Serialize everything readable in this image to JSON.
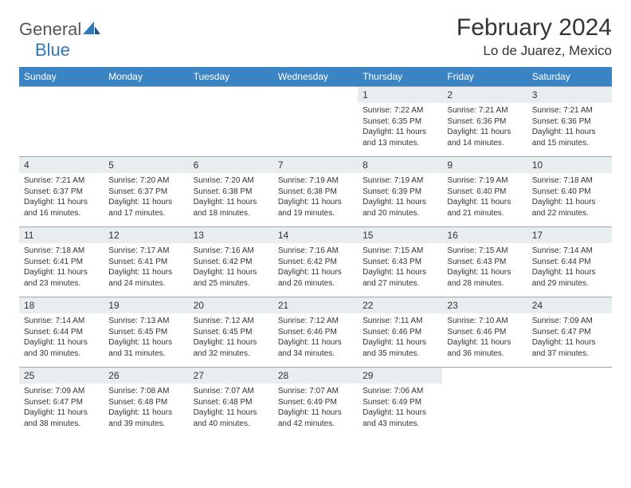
{
  "logo": {
    "text1": "General",
    "text2": "Blue"
  },
  "title": "February 2024",
  "location": "Lo de Juarez, Mexico",
  "columns": [
    "Sunday",
    "Monday",
    "Tuesday",
    "Wednesday",
    "Thursday",
    "Friday",
    "Saturday"
  ],
  "colors": {
    "header_bg": "#3b84c4",
    "header_text": "#ffffff",
    "day_bar_bg": "#e8edef",
    "border": "#9aa7b3",
    "text": "#333333",
    "logo_blue": "#2f77bb",
    "logo_gray": "#555555"
  },
  "weeks": [
    [
      null,
      null,
      null,
      null,
      {
        "n": "1",
        "sr": "7:22 AM",
        "ss": "6:35 PM",
        "dl": "11 hours and 13 minutes."
      },
      {
        "n": "2",
        "sr": "7:21 AM",
        "ss": "6:36 PM",
        "dl": "11 hours and 14 minutes."
      },
      {
        "n": "3",
        "sr": "7:21 AM",
        "ss": "6:36 PM",
        "dl": "11 hours and 15 minutes."
      }
    ],
    [
      {
        "n": "4",
        "sr": "7:21 AM",
        "ss": "6:37 PM",
        "dl": "11 hours and 16 minutes."
      },
      {
        "n": "5",
        "sr": "7:20 AM",
        "ss": "6:37 PM",
        "dl": "11 hours and 17 minutes."
      },
      {
        "n": "6",
        "sr": "7:20 AM",
        "ss": "6:38 PM",
        "dl": "11 hours and 18 minutes."
      },
      {
        "n": "7",
        "sr": "7:19 AM",
        "ss": "6:38 PM",
        "dl": "11 hours and 19 minutes."
      },
      {
        "n": "8",
        "sr": "7:19 AM",
        "ss": "6:39 PM",
        "dl": "11 hours and 20 minutes."
      },
      {
        "n": "9",
        "sr": "7:19 AM",
        "ss": "6:40 PM",
        "dl": "11 hours and 21 minutes."
      },
      {
        "n": "10",
        "sr": "7:18 AM",
        "ss": "6:40 PM",
        "dl": "11 hours and 22 minutes."
      }
    ],
    [
      {
        "n": "11",
        "sr": "7:18 AM",
        "ss": "6:41 PM",
        "dl": "11 hours and 23 minutes."
      },
      {
        "n": "12",
        "sr": "7:17 AM",
        "ss": "6:41 PM",
        "dl": "11 hours and 24 minutes."
      },
      {
        "n": "13",
        "sr": "7:16 AM",
        "ss": "6:42 PM",
        "dl": "11 hours and 25 minutes."
      },
      {
        "n": "14",
        "sr": "7:16 AM",
        "ss": "6:42 PM",
        "dl": "11 hours and 26 minutes."
      },
      {
        "n": "15",
        "sr": "7:15 AM",
        "ss": "6:43 PM",
        "dl": "11 hours and 27 minutes."
      },
      {
        "n": "16",
        "sr": "7:15 AM",
        "ss": "6:43 PM",
        "dl": "11 hours and 28 minutes."
      },
      {
        "n": "17",
        "sr": "7:14 AM",
        "ss": "6:44 PM",
        "dl": "11 hours and 29 minutes."
      }
    ],
    [
      {
        "n": "18",
        "sr": "7:14 AM",
        "ss": "6:44 PM",
        "dl": "11 hours and 30 minutes."
      },
      {
        "n": "19",
        "sr": "7:13 AM",
        "ss": "6:45 PM",
        "dl": "11 hours and 31 minutes."
      },
      {
        "n": "20",
        "sr": "7:12 AM",
        "ss": "6:45 PM",
        "dl": "11 hours and 32 minutes."
      },
      {
        "n": "21",
        "sr": "7:12 AM",
        "ss": "6:46 PM",
        "dl": "11 hours and 34 minutes."
      },
      {
        "n": "22",
        "sr": "7:11 AM",
        "ss": "6:46 PM",
        "dl": "11 hours and 35 minutes."
      },
      {
        "n": "23",
        "sr": "7:10 AM",
        "ss": "6:46 PM",
        "dl": "11 hours and 36 minutes."
      },
      {
        "n": "24",
        "sr": "7:09 AM",
        "ss": "6:47 PM",
        "dl": "11 hours and 37 minutes."
      }
    ],
    [
      {
        "n": "25",
        "sr": "7:09 AM",
        "ss": "6:47 PM",
        "dl": "11 hours and 38 minutes."
      },
      {
        "n": "26",
        "sr": "7:08 AM",
        "ss": "6:48 PM",
        "dl": "11 hours and 39 minutes."
      },
      {
        "n": "27",
        "sr": "7:07 AM",
        "ss": "6:48 PM",
        "dl": "11 hours and 40 minutes."
      },
      {
        "n": "28",
        "sr": "7:07 AM",
        "ss": "6:49 PM",
        "dl": "11 hours and 42 minutes."
      },
      {
        "n": "29",
        "sr": "7:06 AM",
        "ss": "6:49 PM",
        "dl": "11 hours and 43 minutes."
      },
      null,
      null
    ]
  ],
  "labels": {
    "sunrise": "Sunrise:",
    "sunset": "Sunset:",
    "daylight": "Daylight:"
  }
}
